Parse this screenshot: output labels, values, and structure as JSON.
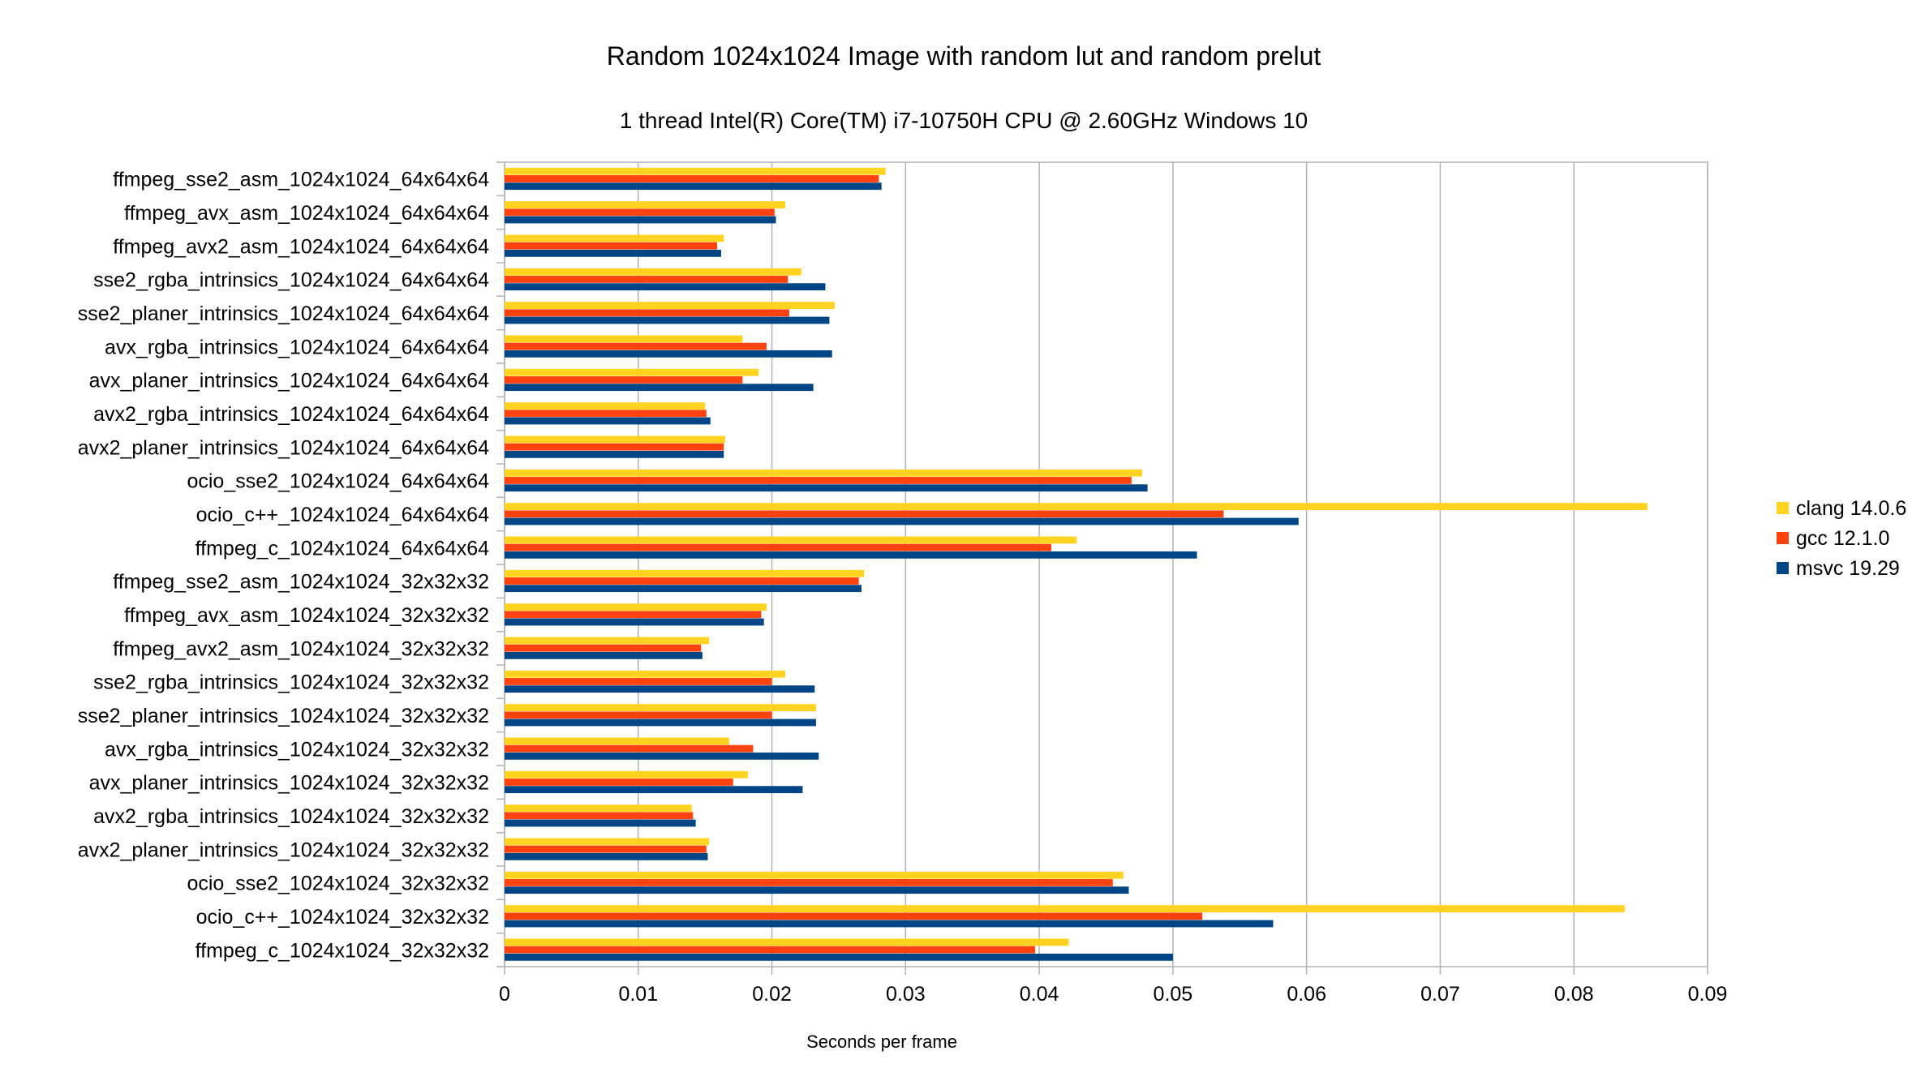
{
  "chart_data": {
    "type": "bar",
    "orientation": "horizontal",
    "title": "Random 1024x1024 Image with random lut and random prelut",
    "subtitle": "1 thread Intel(R) Core(TM) i7-10750H CPU @ 2.60GHz Windows 10",
    "xlabel": "Seconds per frame",
    "ylabel": "",
    "xlim": [
      0,
      0.09
    ],
    "xticks": [
      "0",
      "0.01",
      "0.02",
      "0.03",
      "0.04",
      "0.05",
      "0.06",
      "0.07",
      "0.08",
      "0.09"
    ],
    "grid": true,
    "legend_position": "right",
    "categories": [
      "ffmpeg_sse2_asm_1024x1024_64x64x64",
      "ffmpeg_avx_asm_1024x1024_64x64x64",
      "ffmpeg_avx2_asm_1024x1024_64x64x64",
      "sse2_rgba_intrinsics_1024x1024_64x64x64",
      "sse2_planer_intrinsics_1024x1024_64x64x64",
      "avx_rgba_intrinsics_1024x1024_64x64x64",
      "avx_planer_intrinsics_1024x1024_64x64x64",
      "avx2_rgba_intrinsics_1024x1024_64x64x64",
      "avx2_planer_intrinsics_1024x1024_64x64x64",
      "ocio_sse2_1024x1024_64x64x64",
      "ocio_c++_1024x1024_64x64x64",
      "ffmpeg_c_1024x1024_64x64x64",
      "ffmpeg_sse2_asm_1024x1024_32x32x32",
      "ffmpeg_avx_asm_1024x1024_32x32x32",
      "ffmpeg_avx2_asm_1024x1024_32x32x32",
      "sse2_rgba_intrinsics_1024x1024_32x32x32",
      "sse2_planer_intrinsics_1024x1024_32x32x32",
      "avx_rgba_intrinsics_1024x1024_32x32x32",
      "avx_planer_intrinsics_1024x1024_32x32x32",
      "avx2_rgba_intrinsics_1024x1024_32x32x32",
      "avx2_planer_intrinsics_1024x1024_32x32x32",
      "ocio_sse2_1024x1024_32x32x32",
      "ocio_c++_1024x1024_32x32x32",
      "ffmpeg_c_1024x1024_32x32x32"
    ],
    "series": [
      {
        "name": "clang 14.0.6",
        "color": "#ffd320",
        "values": [
          0.0285,
          0.021,
          0.0164,
          0.0222,
          0.0247,
          0.0178,
          0.019,
          0.015,
          0.0165,
          0.0477,
          0.0855,
          0.0428,
          0.0269,
          0.0196,
          0.0153,
          0.021,
          0.0233,
          0.0168,
          0.0182,
          0.014,
          0.0153,
          0.0463,
          0.0838,
          0.0422
        ]
      },
      {
        "name": "gcc 12.1.0",
        "color": "#ff420e",
        "values": [
          0.028,
          0.0202,
          0.0159,
          0.0212,
          0.0213,
          0.0196,
          0.0178,
          0.0151,
          0.0164,
          0.0469,
          0.0538,
          0.0409,
          0.0265,
          0.0192,
          0.0147,
          0.02,
          0.02,
          0.0186,
          0.0171,
          0.0141,
          0.0151,
          0.0455,
          0.0522,
          0.0397
        ]
      },
      {
        "name": "msvc 19.29",
        "color": "#004586",
        "values": [
          0.0282,
          0.0203,
          0.0162,
          0.024,
          0.0243,
          0.0245,
          0.0231,
          0.0154,
          0.0164,
          0.0481,
          0.0594,
          0.0518,
          0.0267,
          0.0194,
          0.0148,
          0.0232,
          0.0233,
          0.0235,
          0.0223,
          0.0143,
          0.0152,
          0.0467,
          0.0575,
          0.05
        ]
      }
    ]
  }
}
